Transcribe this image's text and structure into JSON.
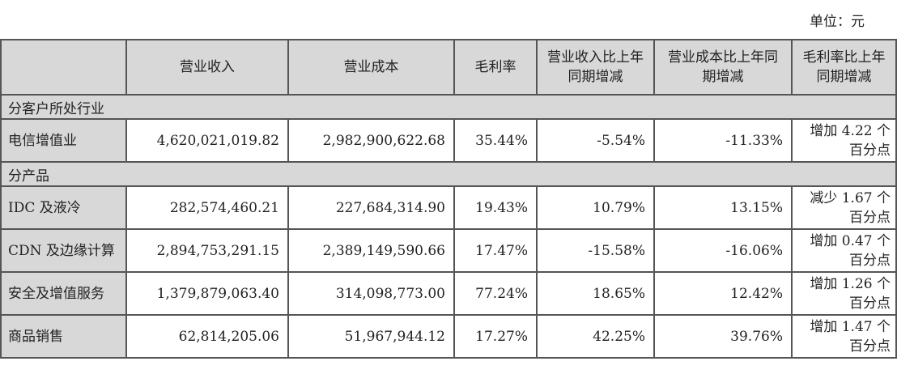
{
  "unit_label": "单位：元",
  "headers": [
    "",
    "营业收入",
    "营业成本",
    "毛利率",
    "营业收入比上年同期增减",
    "营业成本比上年同期增减",
    "毛利率比上年同期增减"
  ],
  "sections": [
    {
      "title": "分客户所处行业",
      "rows": [
        {
          "name": "电信增值业",
          "revenue": "4,620,021,019.82",
          "cost": "2,982,900,622.68",
          "margin": "35.44%",
          "rev_change": "-5.54%",
          "cost_change": "-11.33%",
          "margin_change": "增加 4.22 个百分点"
        }
      ]
    },
    {
      "title": "分产品",
      "rows": [
        {
          "name": "IDC 及液冷",
          "revenue": "282,574,460.21",
          "cost": "227,684,314.90",
          "margin": "19.43%",
          "rev_change": "10.79%",
          "cost_change": "13.15%",
          "margin_change": "减少 1.67 个百分点"
        },
        {
          "name": "CDN 及边缘计算",
          "revenue": "2,894,753,291.15",
          "cost": "2,389,149,590.66",
          "margin": "17.47%",
          "rev_change": "-15.58%",
          "cost_change": "-16.06%",
          "margin_change": "增加 0.47 个百分点"
        },
        {
          "name": "安全及增值服务",
          "revenue": "1,379,879,063.40",
          "cost": "314,098,773.00",
          "margin": "77.24%",
          "rev_change": "18.65%",
          "cost_change": "12.42%",
          "margin_change": "增加 1.26 个百分点"
        },
        {
          "name": "商品销售",
          "revenue": "62,814,205.06",
          "cost": "51,967,944.12",
          "margin": "17.27%",
          "rev_change": "42.25%",
          "cost_change": "39.76%",
          "margin_change": "增加 1.47 个百分点"
        }
      ]
    }
  ]
}
